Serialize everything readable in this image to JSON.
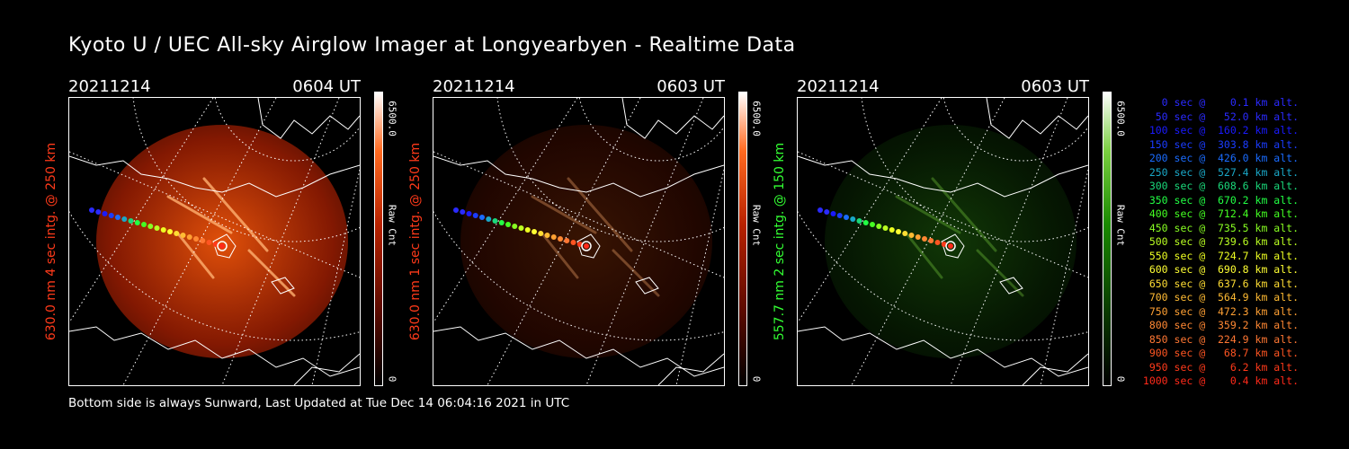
{
  "title": "Kyoto U / UEC All-sky Airglow Imager at Longyearbyen - Realtime Data",
  "footer": "Bottom side is always Sunward, Last Updated at Tue Dec 14 06:04:16 2021 in UTC",
  "panels": [
    {
      "date": "20211214",
      "time": "0604 UT",
      "ylabel": "630.0 nm 4 sec intg. @ 250 km",
      "label_color": "#ff3a1a",
      "cbar_max": "6500.0",
      "cbar_name": "Raw Cnt",
      "cbar_min": "0",
      "theme": "red",
      "intensity": 1.0
    },
    {
      "date": "20211214",
      "time": "0603 UT",
      "ylabel": "630.0 nm 1 sec intg. @ 250 km",
      "label_color": "#ff3a1a",
      "cbar_max": "6500.0",
      "cbar_name": "Raw Cnt",
      "cbar_min": "0",
      "theme": "red",
      "intensity": 0.25
    },
    {
      "date": "20211214",
      "time": "0603 UT",
      "ylabel": "557.7 nm 2 sec intg. @ 150 km",
      "label_color": "#33ff33",
      "cbar_max": "6500.0",
      "cbar_name": "Raw Cnt",
      "cbar_min": "0",
      "theme": "green",
      "intensity": 0.4
    }
  ],
  "legend": [
    {
      "text": "   0 sec @    0.1 km alt.",
      "color": "#2a2aff"
    },
    {
      "text": "  50 sec @   52.0 km alt.",
      "color": "#2a2aff"
    },
    {
      "text": " 100 sec @  160.2 km alt.",
      "color": "#1a1aff"
    },
    {
      "text": " 150 sec @  303.8 km alt.",
      "color": "#1a3cff"
    },
    {
      "text": " 200 sec @  426.0 km alt.",
      "color": "#1a6cff"
    },
    {
      "text": " 250 sec @  527.4 km alt.",
      "color": "#1aa8c8"
    },
    {
      "text": " 300 sec @  608.6 km alt.",
      "color": "#1ad87a"
    },
    {
      "text": " 350 sec @  670.2 km alt.",
      "color": "#22ff44"
    },
    {
      "text": " 400 sec @  712.4 km alt.",
      "color": "#44ff22"
    },
    {
      "text": " 450 sec @  735.5 km alt.",
      "color": "#88ff22"
    },
    {
      "text": " 500 sec @  739.6 km alt.",
      "color": "#bbff22"
    },
    {
      "text": " 550 sec @  724.7 km alt.",
      "color": "#eeff22"
    },
    {
      "text": " 600 sec @  690.8 km alt.",
      "color": "#ffff33"
    },
    {
      "text": " 650 sec @  637.6 km alt.",
      "color": "#ffdd33"
    },
    {
      "text": " 700 sec @  564.9 km alt.",
      "color": "#ffbb33"
    },
    {
      "text": " 750 sec @  472.3 km alt.",
      "color": "#ffa033"
    },
    {
      "text": " 800 sec @  359.2 km alt.",
      "color": "#ff8833"
    },
    {
      "text": " 850 sec @  224.9 km alt.",
      "color": "#ff7733"
    },
    {
      "text": " 900 sec @   68.7 km alt.",
      "color": "#ff5522"
    },
    {
      "text": " 950 sec @    6.2 km alt.",
      "color": "#ff3a1a"
    },
    {
      "text": "1000 sec @    0.4 km alt.",
      "color": "#ff2a1a"
    }
  ]
}
